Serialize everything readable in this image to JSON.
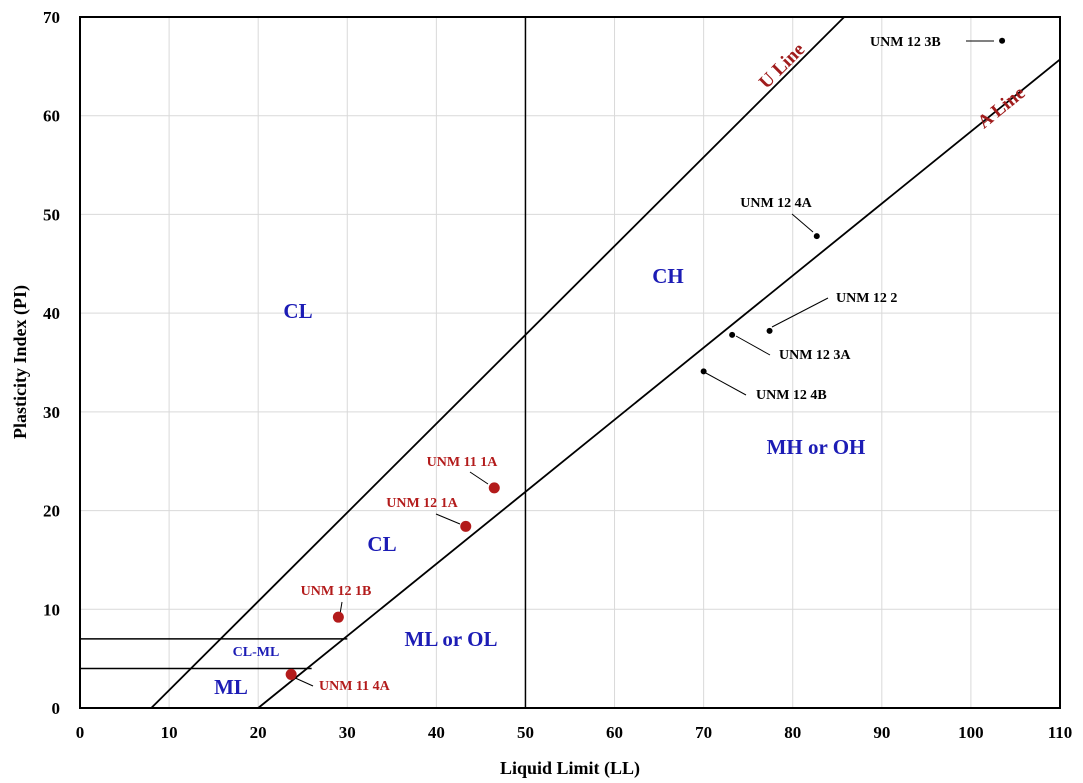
{
  "chart_data": {
    "type": "scatter",
    "xlabel": "Liquid Limit (LL)",
    "ylabel": "Plasticity Index (PI)",
    "xlim": [
      0,
      110
    ],
    "ylim": [
      0,
      70
    ],
    "x_ticks": [
      "0",
      "10",
      "20",
      "30",
      "40",
      "50",
      "60",
      "70",
      "80",
      "90",
      "100",
      "110"
    ],
    "y_ticks": [
      "0",
      "10",
      "20",
      "30",
      "40",
      "50",
      "60",
      "70"
    ],
    "grid": true,
    "lines": [
      {
        "name": "U Line",
        "equation": "PI = 0.9 (LL - 8)",
        "color": "#a01c1c"
      },
      {
        "name": "A Line",
        "equation": "PI = 0.73 (LL - 20)",
        "color": "#a01c1c"
      }
    ],
    "reference_lines": {
      "vertical_ll": 50,
      "horizontal_pi": [
        4,
        7
      ]
    },
    "zones": [
      "CL",
      "CH",
      "CL",
      "CL-ML",
      "ML",
      "ML or OL",
      "MH or OH"
    ],
    "series": [
      {
        "color": "#b31b1b",
        "points": [
          {
            "label": "UNM 11 1A",
            "x": 46.5,
            "y": 22.3
          },
          {
            "label": "UNM 12 1A",
            "x": 43.3,
            "y": 18.4
          },
          {
            "label": "UNM 12 1B",
            "x": 29.0,
            "y": 9.2
          },
          {
            "label": "UNM 11 4A",
            "x": 23.7,
            "y": 3.4
          }
        ]
      },
      {
        "color": "#000000",
        "points": [
          {
            "label": "UNM 12 3B",
            "x": 103.5,
            "y": 67.6
          },
          {
            "label": "UNM 12 4A",
            "x": 82.7,
            "y": 47.8
          },
          {
            "label": "UNM 12 2",
            "x": 77.4,
            "y": 38.2
          },
          {
            "label": "UNM 12 3A",
            "x": 73.2,
            "y": 37.8
          },
          {
            "label": "UNM 12 4B",
            "x": 70.0,
            "y": 34.1
          }
        ]
      }
    ]
  }
}
